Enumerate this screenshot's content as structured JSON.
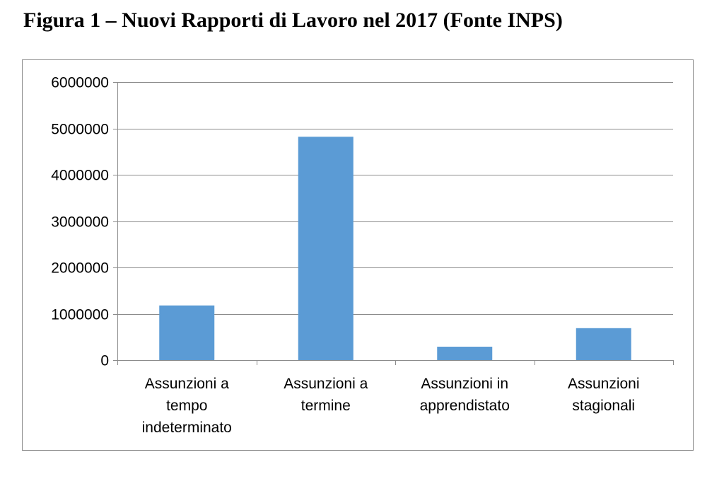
{
  "figure": {
    "title": "Figura 1 – Nuovi Rapporti di Lavoro nel 2017 (Fonte INPS)"
  },
  "colors": {
    "bar": "#5b9bd5",
    "gridline": "#8c8c8c",
    "axis": "#8c8c8c"
  },
  "chart_data": {
    "type": "bar",
    "title": "",
    "xlabel": "",
    "ylabel": "",
    "categories": [
      "Assunzioni a tempo indeterminato",
      "Assunzioni a termine",
      "Assunzioni in apprendistato",
      "Assunzioni stagionali"
    ],
    "category_lines": [
      [
        "Assunzioni a",
        "tempo",
        "indeterminato"
      ],
      [
        "Assunzioni a",
        "termine"
      ],
      [
        "Assunzioni in",
        "apprendistato"
      ],
      [
        "Assunzioni",
        "stagionali"
      ]
    ],
    "values": [
      1180000,
      4820000,
      290000,
      690000
    ],
    "ylim": [
      0,
      6000000
    ],
    "yticks": [
      0,
      1000000,
      2000000,
      3000000,
      4000000,
      5000000,
      6000000
    ],
    "ytick_labels": [
      "0",
      "1000000",
      "2000000",
      "3000000",
      "4000000",
      "5000000",
      "6000000"
    ],
    "grid": true,
    "legend": "none"
  }
}
